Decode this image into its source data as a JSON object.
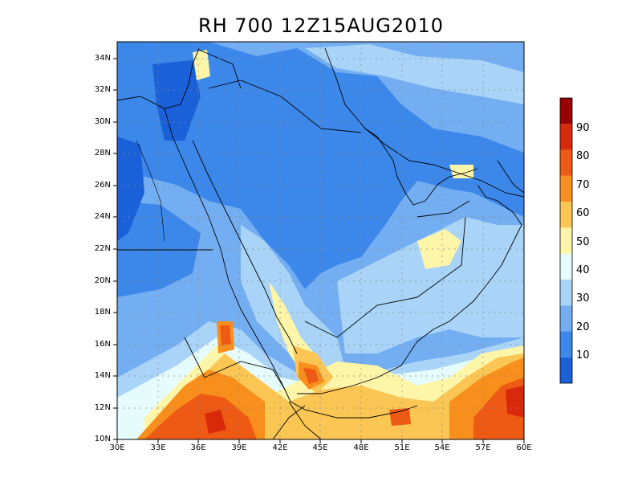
{
  "title": "RH 700 12Z15AUG2010",
  "map": {
    "region": "arabian-peninsula",
    "lon_range": [
      30,
      60
    ],
    "lat_range": [
      10,
      35
    ]
  },
  "axes": {
    "lat_ticks": [
      "10N",
      "12N",
      "14N",
      "16N",
      "18N",
      "20N",
      "22N",
      "24N",
      "26N",
      "28N",
      "30N",
      "32N",
      "34N"
    ],
    "lon_ticks": [
      "30E",
      "33E",
      "36E",
      "39E",
      "42E",
      "45E",
      "48E",
      "51E",
      "54E",
      "57E",
      "60E"
    ]
  },
  "colorbar": {
    "labels": [
      "10",
      "20",
      "30",
      "40",
      "50",
      "60",
      "70",
      "80",
      "90"
    ],
    "colors": [
      "#1a60d8",
      "#3b87ea",
      "#74aef2",
      "#a9d4f8",
      "#e6fbfb",
      "#fdf5a8",
      "#fbc654",
      "#f88f1c",
      "#ee5a14",
      "#d82a0a",
      "#9a0000"
    ]
  },
  "chart_data": {
    "type": "heatmap",
    "variable": "RH",
    "level": "700",
    "valid_time": "12Z15AUG2010"
  }
}
